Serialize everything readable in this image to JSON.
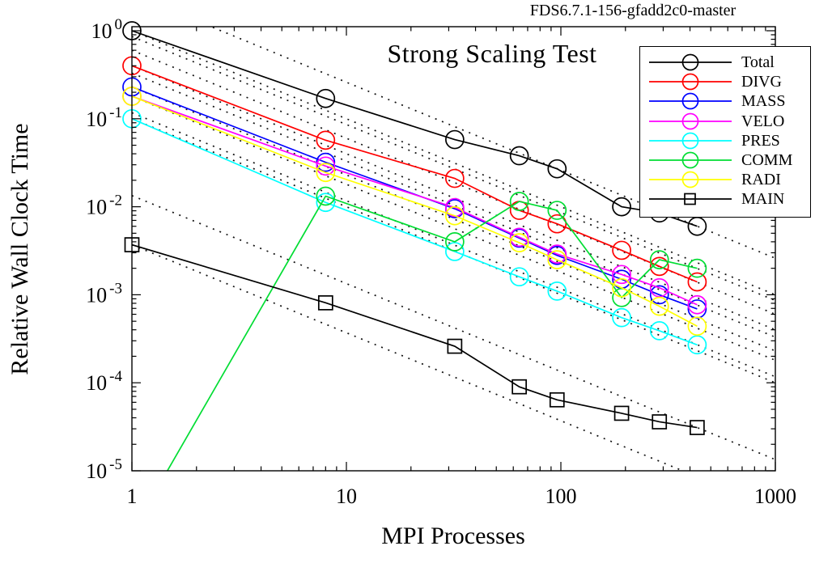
{
  "figure": {
    "annotation": "FDS6.7.1-156-gfadd2c0-master",
    "background_color": "#ffffff",
    "axis_color": "#000000"
  },
  "chart_data": {
    "type": "line",
    "title": "Strong Scaling Test",
    "xlabel": "MPI Processes",
    "ylabel": "Relative Wall Clock Time",
    "x_scale": "log",
    "y_scale": "log",
    "xlim": [
      1,
      1000
    ],
    "ylim": [
      1e-05,
      1
    ],
    "x_ticks": [
      1,
      10,
      100,
      1000
    ],
    "y_tick_exponents": [
      0,
      -1,
      -2,
      -3,
      -4,
      -5
    ],
    "grid": "off",
    "x": [
      1,
      8,
      32,
      64,
      96,
      192,
      288,
      432
    ],
    "series": [
      {
        "name": "Total",
        "color": "#000000",
        "marker": "circle",
        "values": [
          1.0,
          0.17,
          0.058,
          0.038,
          0.027,
          0.01,
          0.0085,
          0.006
        ]
      },
      {
        "name": "DIVG",
        "color": "#ff0000",
        "marker": "circle",
        "values": [
          0.4,
          0.057,
          0.021,
          0.0091,
          0.0064,
          0.0032,
          0.0021,
          0.0014
        ]
      },
      {
        "name": "MASS",
        "color": "#0000ff",
        "marker": "circle",
        "values": [
          0.23,
          0.032,
          0.0095,
          0.0044,
          0.0028,
          0.0015,
          0.001,
          0.00069
        ]
      },
      {
        "name": "VELO",
        "color": "#ff00ff",
        "marker": "circle",
        "values": [
          0.18,
          0.029,
          0.0098,
          0.0045,
          0.0029,
          0.0017,
          0.0012,
          0.00077
        ]
      },
      {
        "name": "PRES",
        "color": "#00ffff",
        "marker": "circle",
        "values": [
          0.1,
          0.0112,
          0.0031,
          0.0016,
          0.0011,
          0.00055,
          0.00039,
          0.00027
        ]
      },
      {
        "name": "COMM",
        "color": "#00dd33",
        "marker": "circle",
        "values": [
          2e-06,
          0.0132,
          0.004,
          0.0115,
          0.0091,
          0.00093,
          0.0025,
          0.002
        ],
        "note": "first point clipped below axis; line enters plot near x=1.4"
      },
      {
        "name": "RADI",
        "color": "#ffff00",
        "marker": "circle",
        "values": [
          0.18,
          0.0245,
          0.0079,
          0.0039,
          0.0025,
          0.0012,
          0.00074,
          0.00044
        ]
      },
      {
        "name": "MAIN",
        "color": "#000000",
        "marker": "square",
        "values": [
          0.0037,
          0.00081,
          0.00026,
          9e-05,
          6.4e-05,
          4.5e-05,
          3.6e-05,
          3.1e-05
        ]
      }
    ],
    "guides": {
      "description": "dotted ideal-scaling reference lines, slope -1 in log-log (t = C/x)",
      "style": "dotted",
      "color": "#111111",
      "constants": [
        2.6,
        1.0,
        0.86,
        0.6,
        0.4,
        0.33,
        0.23,
        0.18,
        0.117,
        0.1,
        0.0134,
        0.0037
      ]
    },
    "legend": {
      "position": "top-right",
      "border": true,
      "entries": [
        "Total",
        "DIVG",
        "MASS",
        "VELO",
        "PRES",
        "COMM",
        "RADI",
        "MAIN"
      ]
    }
  }
}
